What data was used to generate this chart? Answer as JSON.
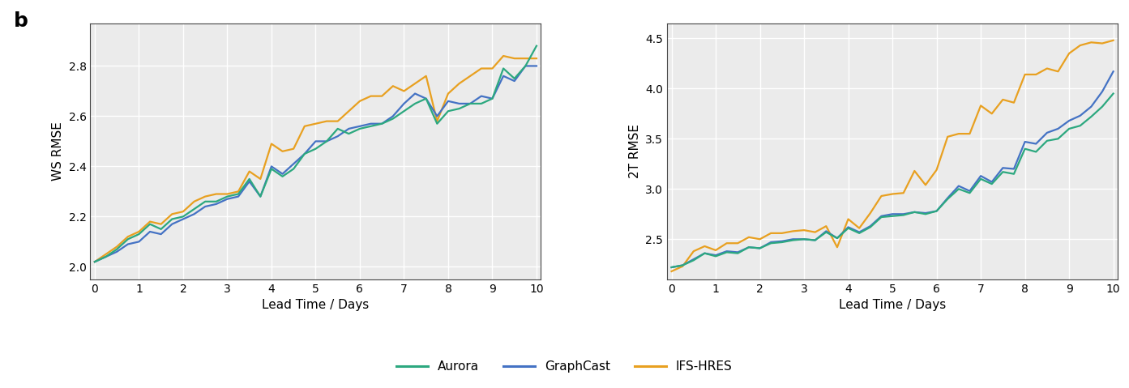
{
  "aurora_color": "#2ca87f",
  "graphcast_color": "#4472c4",
  "ifs_color": "#e8a020",
  "label_b": "b",
  "xlabel": "Lead Time / Days",
  "ylabel_ws": "WS RMSE",
  "ylabel_2t": "2T RMSE",
  "legend_labels": [
    "Aurora",
    "GraphCast",
    "IFS-HRES"
  ],
  "xticks": [
    0,
    1,
    2,
    3,
    4,
    5,
    6,
    7,
    8,
    9,
    10
  ],
  "ws_ylim": [
    1.95,
    2.97
  ],
  "ws_yticks": [
    2.0,
    2.2,
    2.4,
    2.6,
    2.8
  ],
  "t2_ylim": [
    2.1,
    4.65
  ],
  "t2_yticks": [
    2.5,
    3.0,
    3.5,
    4.0,
    4.5
  ],
  "background_color": "#ebebeb",
  "ws_aurora": [
    2.02,
    2.04,
    2.07,
    2.11,
    2.13,
    2.17,
    2.15,
    2.19,
    2.2,
    2.23,
    2.26,
    2.26,
    2.28,
    2.29,
    2.35,
    2.28,
    2.39,
    2.36,
    2.39,
    2.45,
    2.47,
    2.5,
    2.55,
    2.53,
    2.55,
    2.56,
    2.57,
    2.59,
    2.62,
    2.65,
    2.67,
    2.57,
    2.62,
    2.63,
    2.65,
    2.65,
    2.67,
    2.79,
    2.75,
    2.8,
    2.88
  ],
  "ws_graphcast": [
    2.02,
    2.04,
    2.06,
    2.09,
    2.1,
    2.14,
    2.13,
    2.17,
    2.19,
    2.21,
    2.24,
    2.25,
    2.27,
    2.28,
    2.34,
    2.28,
    2.4,
    2.37,
    2.41,
    2.45,
    2.5,
    2.5,
    2.52,
    2.55,
    2.56,
    2.57,
    2.57,
    2.6,
    2.65,
    2.69,
    2.67,
    2.6,
    2.66,
    2.65,
    2.65,
    2.68,
    2.67,
    2.76,
    2.74,
    2.8,
    2.8
  ],
  "ws_ifs": [
    2.02,
    2.05,
    2.08,
    2.12,
    2.14,
    2.18,
    2.17,
    2.21,
    2.22,
    2.26,
    2.28,
    2.29,
    2.29,
    2.3,
    2.38,
    2.35,
    2.49,
    2.46,
    2.47,
    2.56,
    2.57,
    2.58,
    2.58,
    2.62,
    2.66,
    2.68,
    2.68,
    2.72,
    2.7,
    2.73,
    2.76,
    2.58,
    2.69,
    2.73,
    2.76,
    2.79,
    2.79,
    2.84,
    2.83,
    2.83,
    2.83
  ],
  "t2_aurora": [
    2.22,
    2.24,
    2.29,
    2.36,
    2.33,
    2.37,
    2.36,
    2.42,
    2.41,
    2.46,
    2.47,
    2.49,
    2.5,
    2.49,
    2.57,
    2.51,
    2.61,
    2.56,
    2.62,
    2.72,
    2.73,
    2.74,
    2.77,
    2.75,
    2.78,
    2.9,
    3.0,
    2.96,
    3.1,
    3.05,
    3.17,
    3.15,
    3.4,
    3.37,
    3.48,
    3.5,
    3.6,
    3.63,
    3.72,
    3.82,
    3.95
  ],
  "t2_graphcast": [
    2.22,
    2.24,
    2.3,
    2.36,
    2.34,
    2.38,
    2.37,
    2.42,
    2.41,
    2.47,
    2.48,
    2.5,
    2.5,
    2.49,
    2.58,
    2.51,
    2.62,
    2.57,
    2.63,
    2.73,
    2.75,
    2.75,
    2.77,
    2.76,
    2.78,
    2.91,
    3.03,
    2.98,
    3.13,
    3.07,
    3.21,
    3.2,
    3.47,
    3.45,
    3.56,
    3.6,
    3.68,
    3.73,
    3.82,
    3.97,
    4.17
  ],
  "t2_ifs": [
    2.18,
    2.23,
    2.38,
    2.43,
    2.39,
    2.46,
    2.46,
    2.52,
    2.5,
    2.56,
    2.56,
    2.58,
    2.59,
    2.57,
    2.63,
    2.42,
    2.7,
    2.61,
    2.76,
    2.93,
    2.95,
    2.96,
    3.18,
    3.04,
    3.19,
    3.52,
    3.55,
    3.55,
    3.83,
    3.75,
    3.89,
    3.86,
    4.14,
    4.14,
    4.2,
    4.17,
    4.35,
    4.43,
    4.46,
    4.45,
    4.48
  ]
}
